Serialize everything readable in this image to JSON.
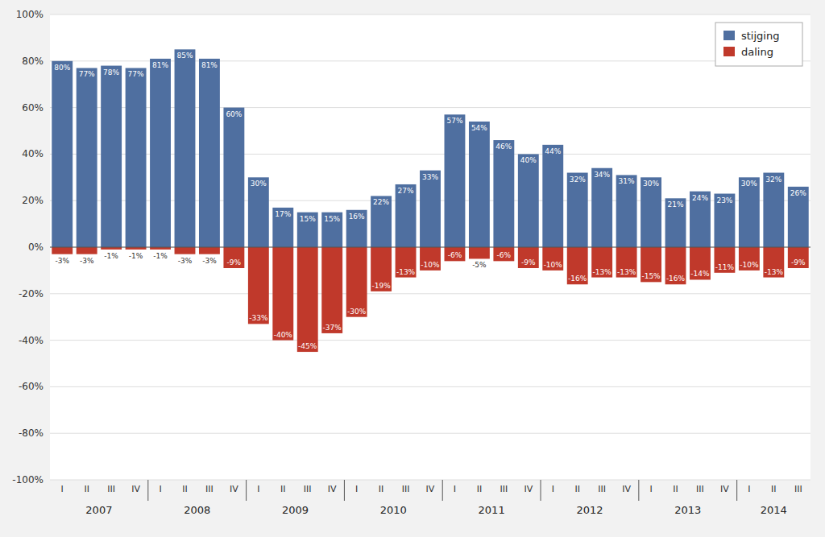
{
  "chart_data": {
    "type": "bar",
    "stacked": true,
    "grid": true,
    "legend": "upper right",
    "data_labels": true,
    "categories": [
      "I",
      "II",
      "III",
      "IV",
      "I",
      "II",
      "III",
      "IV",
      "I",
      "II",
      "III",
      "IV",
      "I",
      "II",
      "III",
      "IV",
      "I",
      "II",
      "III",
      "IV",
      "I",
      "II",
      "III",
      "IV",
      "I",
      "II",
      "III",
      "IV",
      "I",
      "II",
      "III"
    ],
    "groups": [
      {
        "label": "2007",
        "start": 0,
        "end": 3
      },
      {
        "label": "2008",
        "start": 4,
        "end": 7
      },
      {
        "label": "2009",
        "start": 8,
        "end": 11
      },
      {
        "label": "2010",
        "start": 12,
        "end": 15
      },
      {
        "label": "2011",
        "start": 16,
        "end": 19
      },
      {
        "label": "2012",
        "start": 20,
        "end": 23
      },
      {
        "label": "2013",
        "start": 24,
        "end": 27
      },
      {
        "label": "2014",
        "start": 28,
        "end": 30
      }
    ],
    "series": [
      {
        "name": "stijging",
        "color": "#4F6FA0",
        "values": [
          80,
          77,
          78,
          77,
          81,
          85,
          81,
          60,
          30,
          17,
          15,
          15,
          16,
          22,
          27,
          33,
          57,
          54,
          46,
          40,
          44,
          32,
          34,
          31,
          30,
          21,
          24,
          23,
          30,
          32,
          26
        ],
        "value_labels": [
          "80%",
          "77%",
          "78%",
          "77%",
          "81%",
          "85%",
          "81%",
          "60%",
          "30%",
          "17%",
          "15%",
          "15%",
          "16%",
          "22%",
          "27%",
          "33%",
          "57%",
          "54%",
          "46%",
          "40%",
          "44%",
          "32%",
          "34%",
          "31%",
          "30%",
          "21%",
          "24%",
          "23%",
          "30%",
          "32%",
          "26%"
        ]
      },
      {
        "name": "daling",
        "color": "#C0392B",
        "values": [
          -3,
          -3,
          -1,
          -1,
          -1,
          -3,
          -3,
          -9,
          -33,
          -40,
          -45,
          -37,
          -30,
          -19,
          -13,
          -10,
          -6,
          -5,
          -6,
          -9,
          -10,
          -16,
          -13,
          -13,
          -15,
          -16,
          -14,
          -11,
          -10,
          -13,
          -9
        ],
        "value_labels": [
          "-3%",
          "-3%",
          "-1%",
          "-1%",
          "-1%",
          "-3%",
          "-3%",
          "-9%",
          "-33%",
          "-40%",
          "-45%",
          "-37%",
          "-30%",
          "-19%",
          "-13%",
          "-10%",
          "-6%",
          "-5%",
          "-6%",
          "-9%",
          "-10%",
          "-16%",
          "-13%",
          "-13%",
          "-15%",
          "-16%",
          "-14%",
          "-11%",
          "-10%",
          "-13%",
          "-9%"
        ]
      }
    ],
    "ylim": [
      -100,
      100
    ],
    "yticks": [
      {
        "value": -100,
        "label": "-100%"
      },
      {
        "value": -80,
        "label": "-80%"
      },
      {
        "value": -60,
        "label": "-60%"
      },
      {
        "value": -40,
        "label": "-40%"
      },
      {
        "value": -20,
        "label": "-20%"
      },
      {
        "value": 0,
        "label": "0%"
      },
      {
        "value": 20,
        "label": "20%"
      },
      {
        "value": 40,
        "label": "40%"
      },
      {
        "value": 60,
        "label": "60%"
      },
      {
        "value": 80,
        "label": "80%"
      },
      {
        "value": 100,
        "label": "100%"
      }
    ]
  }
}
